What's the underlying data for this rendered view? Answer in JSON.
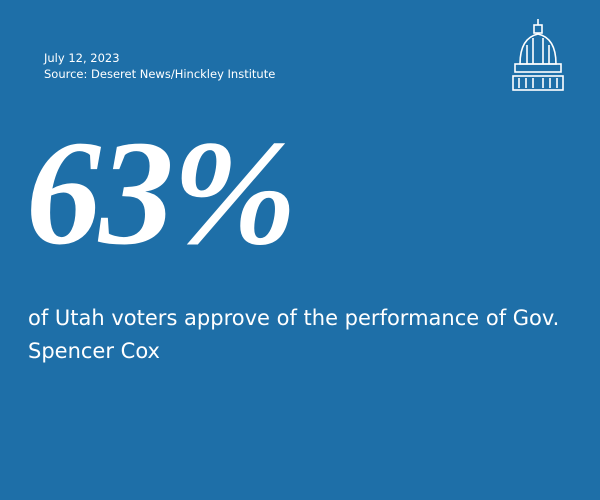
{
  "header": {
    "date": "July 12, 2023",
    "source": "Source: Deseret News/Hinckley Institute"
  },
  "stat": {
    "value": "63%",
    "description": "of Utah voters approve of the performance of Gov. Spencer Cox"
  }
}
